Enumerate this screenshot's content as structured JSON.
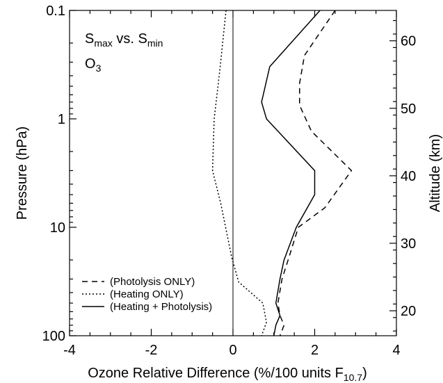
{
  "chart_data": {
    "type": "line",
    "annotations": [
      [
        "S",
        "max",
        " vs. S",
        "min"
      ],
      [
        "O",
        "3"
      ]
    ],
    "xlabel": [
      "Ozone Relative Difference (%/100 units F",
      "10.7",
      ")"
    ],
    "ylabel": "Pressure (hPa)",
    "y2label": "Altitude (km)",
    "xlim": [
      -4,
      4
    ],
    "xticks": [
      -4,
      -2,
      0,
      2,
      4
    ],
    "ylim": [
      100,
      0.1
    ],
    "yticks": [
      0.1,
      1,
      10,
      100
    ],
    "log_y": true,
    "y2lim": [
      16.3,
      64.5
    ],
    "y2ticks": [
      20,
      30,
      40,
      50,
      60
    ],
    "reference_line": 0,
    "legend": "lower left",
    "series": [
      {
        "name": "(Photolysis ONLY)",
        "color": "#000000",
        "dash": "dashed",
        "y": [
          0.1,
          0.26,
          0.47,
          0.75,
          1.3,
          3.0,
          6.6,
          10,
          20,
          30,
          50,
          65,
          80,
          100
        ],
        "values": [
          2.5,
          1.75,
          1.63,
          1.63,
          1.92,
          2.9,
          2.25,
          1.6,
          1.35,
          1.2,
          1.1,
          1.15,
          1.25,
          1.15
        ]
      },
      {
        "name": "(Heating ONLY)",
        "color": "#000000",
        "dash": "dotted",
        "y": [
          0.1,
          0.35,
          1,
          3.0,
          6.0,
          19,
          32,
          50,
          75,
          100
        ],
        "values": [
          -0.17,
          -0.32,
          -0.46,
          -0.5,
          -0.3,
          -0.03,
          0.14,
          0.73,
          0.82,
          0.7
        ]
      },
      {
        "name": "(Heating + Photolysis)",
        "color": "#000000",
        "dash": "solid",
        "y": [
          0.1,
          0.33,
          0.7,
          1,
          3.0,
          5,
          10,
          20,
          30,
          50,
          65,
          80,
          100
        ],
        "values": [
          2.13,
          0.9,
          0.7,
          0.82,
          2.0,
          2.0,
          1.55,
          1.25,
          1.15,
          1.05,
          1.15,
          1.05,
          1.0
        ]
      }
    ]
  }
}
